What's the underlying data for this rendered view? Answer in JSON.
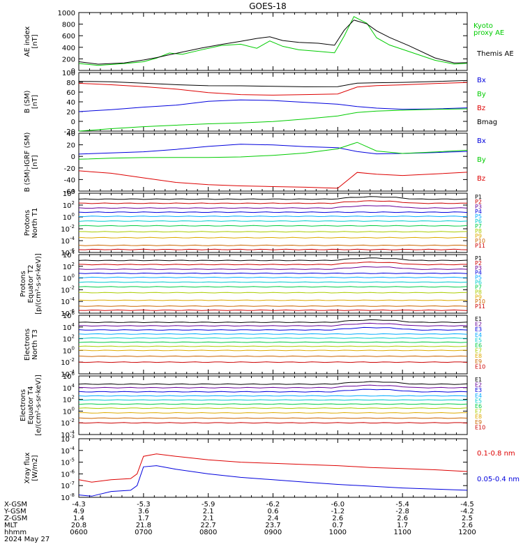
{
  "title": "GOES-18",
  "colors": {
    "black": "#000000",
    "green": "#00cc00",
    "red": "#dd0000",
    "blue": "#0000dd",
    "P": [
      "#000000",
      "#cc0000",
      "#660099",
      "#0000dd",
      "#00aaff",
      "#00cccc",
      "#00cc44",
      "#aacc00",
      "#ddaa00",
      "#cc6600",
      "#cc0000"
    ],
    "E": [
      "#000000",
      "#660099",
      "#0000dd",
      "#00aaff",
      "#00cccc",
      "#00cc44",
      "#aacc00",
      "#ddaa00",
      "#cc6600",
      "#cc0000"
    ]
  },
  "x_axis": {
    "ticks": [
      "0600",
      "0700",
      "0800",
      "0900",
      "1000",
      "1100",
      "1200"
    ],
    "rows": [
      {
        "name": "X-GSM",
        "values": [
          "-4.3",
          "-5.3",
          "-5.9",
          "-6.2",
          "-6.0",
          "-5.4",
          "-4.5"
        ]
      },
      {
        "name": "Y-GSM",
        "values": [
          "4.9",
          "3.6",
          "2.1",
          "0.6",
          "-1.2",
          "-2.8",
          "-4.2"
        ]
      },
      {
        "name": "Z-GSM",
        "values": [
          "1.4",
          "1.7",
          "2.1",
          "2.4",
          "2.6",
          "2.6",
          "2.5"
        ]
      },
      {
        "name": "MLT",
        "values": [
          "20.8",
          "21.8",
          "22.7",
          "23.7",
          "0.7",
          "1.7",
          "2.6"
        ]
      },
      {
        "name": "hhmm",
        "values": [
          "0600",
          "0700",
          "0800",
          "0900",
          "1000",
          "1100",
          "1200"
        ]
      }
    ],
    "date": "2024 May 27"
  },
  "chart_data": [
    {
      "type": "line",
      "ylabel": [
        "AE index",
        "[nT]"
      ],
      "ylim": [
        0,
        1000
      ],
      "yticks": [
        0,
        200,
        400,
        600,
        800,
        1000
      ],
      "legend": [
        "Kyoto",
        "proxy AE",
        "Themis AE"
      ],
      "series": [
        {
          "name": "Kyoto proxy AE",
          "color": "green",
          "x": [
            6,
            6.3,
            6.7,
            7,
            7.2,
            7.4,
            7.6,
            7.9,
            8.2,
            8.5,
            8.75,
            8.95,
            9.15,
            9.4,
            9.7,
            9.95,
            10.1,
            10.25,
            10.45,
            10.6,
            10.8,
            11.1,
            11.5,
            11.8,
            12
          ],
          "y": [
            120,
            80,
            110,
            150,
            220,
            310,
            280,
            350,
            420,
            450,
            390,
            520,
            420,
            350,
            320,
            300,
            600,
            940,
            820,
            560,
            430,
            320,
            180,
            120,
            130
          ]
        },
        {
          "name": "Themis AE",
          "color": "black",
          "x": [
            6,
            6.3,
            6.7,
            7,
            7.2,
            7.4,
            7.6,
            7.9,
            8.2,
            8.5,
            8.75,
            8.95,
            9.15,
            9.4,
            9.7,
            9.95,
            10.1,
            10.25,
            10.45,
            10.6,
            10.8,
            11.1,
            11.5,
            11.8,
            12
          ],
          "y": [
            150,
            100,
            120,
            180,
            230,
            280,
            320,
            380,
            440,
            500,
            560,
            590,
            520,
            480,
            460,
            430,
            700,
            880,
            810,
            680,
            560,
            420,
            220,
            140,
            140
          ]
        }
      ]
    },
    {
      "type": "line",
      "ylabel": [
        "B (SM)",
        "[nT]"
      ],
      "ylim": [
        -20,
        100
      ],
      "yticks": [
        -20,
        0,
        20,
        40,
        60,
        80,
        100
      ],
      "legend": [
        "Bx",
        "By",
        "Bz",
        "Bmag"
      ],
      "series": [
        {
          "name": "Bx",
          "color": "blue",
          "x": [
            6,
            6.5,
            7,
            7.5,
            8,
            8.5,
            9,
            9.5,
            10,
            10.3,
            10.6,
            11,
            11.5,
            12
          ],
          "y": [
            20,
            23,
            28,
            33,
            42,
            45,
            43,
            38,
            34,
            30,
            28,
            26,
            26,
            27
          ]
        },
        {
          "name": "By",
          "color": "green",
          "x": [
            6,
            6.5,
            7,
            7.5,
            8,
            8.5,
            9,
            9.5,
            10,
            10.3,
            10.6,
            11,
            11.5,
            12
          ],
          "y": [
            -20,
            -16,
            -12,
            -8,
            -4,
            -2,
            0,
            4,
            10,
            18,
            22,
            24,
            25,
            25
          ]
        },
        {
          "name": "Bz",
          "color": "red",
          "x": [
            6,
            6.5,
            7,
            7.5,
            8,
            8.5,
            9,
            9.5,
            10,
            10.3,
            10.6,
            11,
            11.5,
            12
          ],
          "y": [
            78,
            74,
            70,
            66,
            60,
            56,
            54,
            54,
            55,
            70,
            74,
            76,
            78,
            79
          ]
        },
        {
          "name": "Bmag",
          "color": "black",
          "x": [
            6,
            6.5,
            7,
            7.5,
            8,
            8.5,
            9,
            9.5,
            10,
            10.3,
            10.6,
            11,
            11.5,
            12
          ],
          "y": [
            82,
            80,
            77,
            75,
            74,
            74,
            72,
            70,
            70,
            78,
            80,
            81,
            82,
            83
          ]
        }
      ]
    },
    {
      "type": "line",
      "ylabel": [
        "B (SM)-IGRF (SM)",
        "[nT]"
      ],
      "ylim": [
        -60,
        40
      ],
      "yticks": [
        -60,
        -40,
        -20,
        0,
        20,
        40
      ],
      "legend": [
        "Bx",
        "By",
        "Bz"
      ],
      "series": [
        {
          "name": "Bx",
          "color": "blue",
          "x": [
            6,
            6.5,
            7,
            7.5,
            8,
            8.5,
            9,
            9.5,
            10,
            10.3,
            10.6,
            11,
            11.5,
            12
          ],
          "y": [
            4,
            5,
            7,
            12,
            18,
            22,
            20,
            16,
            14,
            8,
            5,
            6,
            7,
            8
          ]
        },
        {
          "name": "By",
          "color": "green",
          "x": [
            6,
            6.5,
            7,
            7.5,
            8,
            8.5,
            9,
            9.5,
            10,
            10.3,
            10.6,
            11,
            11.5,
            12
          ],
          "y": [
            -5,
            -4,
            -3,
            -2,
            -1,
            0,
            2,
            5,
            12,
            24,
            10,
            6,
            8,
            10
          ]
        },
        {
          "name": "Bz",
          "color": "red",
          "x": [
            6,
            6.5,
            7,
            7.5,
            8,
            8.5,
            9,
            9.5,
            10,
            10.3,
            10.6,
            11,
            11.5,
            12
          ],
          "y": [
            -25,
            -30,
            -38,
            -45,
            -48,
            -50,
            -52,
            -54,
            -56,
            -28,
            -30,
            -32,
            -30,
            -28
          ]
        }
      ]
    },
    {
      "type": "line",
      "ylabel": [
        "Protons",
        "North T1"
      ],
      "log": true,
      "ylim": [
        -6,
        4
      ],
      "ytick_labels": [
        {
          "b": "10",
          "e": "4"
        },
        {
          "b": "10",
          "e": "2"
        },
        {
          "b": "10",
          "e": "0"
        },
        {
          "b": "10",
          "e": "-2"
        },
        {
          "b": "10",
          "e": "-4"
        },
        {
          "b": "10",
          "e": "-6"
        }
      ],
      "ytick_exps": [
        4,
        2,
        0,
        -2,
        -4,
        -6
      ],
      "legend": [
        "P1",
        "P2",
        "P3",
        "P4",
        "P5",
        "P6",
        "P7",
        "P8",
        "P9",
        "P10",
        "P11"
      ],
      "levels": [
        3.0,
        2.3,
        1.5,
        0.8,
        0.1,
        -0.7,
        -1.5,
        -2.5,
        -3.5,
        -4.8,
        -5.5
      ]
    },
    {
      "type": "line",
      "ylabel": [
        "Protons",
        "Equator T2",
        "[p/(cm²-s-sr-keV)]"
      ],
      "log": true,
      "ylim": [
        -6,
        4
      ],
      "ytick_labels": [
        {
          "b": "10",
          "e": "4"
        },
        {
          "b": "10",
          "e": "2"
        },
        {
          "b": "10",
          "e": "0"
        },
        {
          "b": "10",
          "e": "-2"
        },
        {
          "b": "10",
          "e": "-4"
        },
        {
          "b": "10",
          "e": "-6"
        }
      ],
      "ytick_exps": [
        4,
        2,
        0,
        -2,
        -4,
        -6
      ],
      "legend": [
        "P1",
        "P2",
        "P3",
        "P4",
        "P5",
        "P6",
        "P7",
        "P8",
        "P9",
        "P10",
        "P11"
      ],
      "levels": [
        3.0,
        2.3,
        1.5,
        0.8,
        0.1,
        -0.7,
        -1.5,
        -2.5,
        -3.8,
        -4.8,
        -5.5
      ]
    },
    {
      "type": "line",
      "ylabel": [
        "Electrons",
        "North T3"
      ],
      "log": true,
      "ylim": [
        -4,
        6
      ],
      "ytick_labels": [
        {
          "b": "10",
          "e": "6"
        },
        {
          "b": "10",
          "e": "4"
        },
        {
          "b": "10",
          "e": "2"
        },
        {
          "b": "10",
          "e": "0"
        },
        {
          "b": "10",
          "e": "-2"
        },
        {
          "b": "10",
          "e": "-4"
        }
      ],
      "ytick_exps": [
        6,
        4,
        2,
        0,
        -2,
        -4
      ],
      "legend": [
        "E1",
        "E2",
        "E3",
        "E4",
        "E5",
        "E6",
        "E7",
        "E8",
        "E9",
        "E10"
      ],
      "levels": [
        4.8,
        4.2,
        3.5,
        2.8,
        2.1,
        1.4,
        0.7,
        0,
        -1,
        -2
      ]
    },
    {
      "type": "line",
      "ylabel": [
        "Electrons",
        "Equator T4",
        "[e/(cm²-s-sr-keV)]"
      ],
      "log": true,
      "ylim": [
        -4,
        6
      ],
      "ytick_labels": [
        {
          "b": "10",
          "e": "6"
        },
        {
          "b": "10",
          "e": "4"
        },
        {
          "b": "10",
          "e": "2"
        },
        {
          "b": "10",
          "e": "0"
        },
        {
          "b": "10",
          "e": "-2"
        },
        {
          "b": "10",
          "e": "-4"
        }
      ],
      "ytick_exps": [
        6,
        4,
        2,
        0,
        -2,
        -4
      ],
      "legend": [
        "E1",
        "E2",
        "E3",
        "E4",
        "E5",
        "E6",
        "E7",
        "E8",
        "E9",
        "E10"
      ],
      "levels": [
        4.6,
        4.0,
        3.3,
        2.6,
        1.9,
        1.2,
        0.5,
        -0.3,
        -1.2,
        -2
      ]
    },
    {
      "type": "line",
      "ylabel": [
        "Xray flux",
        "[W/m2]"
      ],
      "log": true,
      "ylim": [
        -8,
        -3
      ],
      "ytick_labels": [
        {
          "b": "10",
          "e": "-3"
        },
        {
          "b": "10",
          "e": "-4"
        },
        {
          "b": "10",
          "e": "-5"
        },
        {
          "b": "10",
          "e": "-6"
        },
        {
          "b": "10",
          "e": "-7"
        },
        {
          "b": "10",
          "e": "-8"
        }
      ],
      "ytick_exps": [
        -3,
        -4,
        -5,
        -6,
        -7,
        -8
      ],
      "legend": [
        "0.1-0.8 nm",
        "0.05-0.4 nm"
      ],
      "series": [
        {
          "name": "0.1-0.8 nm",
          "color": "red",
          "x": [
            6,
            6.2,
            6.5,
            6.8,
            6.9,
            7.0,
            7.2,
            7.5,
            8,
            8.5,
            9,
            9.5,
            10,
            10.5,
            11,
            11.5,
            12
          ],
          "y": [
            -6.5,
            -6.7,
            -6.5,
            -6.4,
            -6.0,
            -4.5,
            -4.3,
            -4.5,
            -4.8,
            -5.0,
            -5.1,
            -5.2,
            -5.3,
            -5.45,
            -5.55,
            -5.65,
            -5.8
          ]
        },
        {
          "name": "0.05-0.4 nm",
          "color": "blue",
          "x": [
            6,
            6.2,
            6.5,
            6.8,
            6.9,
            7.0,
            7.2,
            7.5,
            8,
            8.5,
            9,
            9.5,
            10,
            10.5,
            11,
            11.5,
            12
          ],
          "y": [
            -7.8,
            -7.9,
            -7.5,
            -7.4,
            -7.0,
            -5.4,
            -5.3,
            -5.6,
            -6.0,
            -6.3,
            -6.5,
            -6.7,
            -6.9,
            -7.05,
            -7.2,
            -7.3,
            -7.4
          ]
        }
      ]
    }
  ]
}
